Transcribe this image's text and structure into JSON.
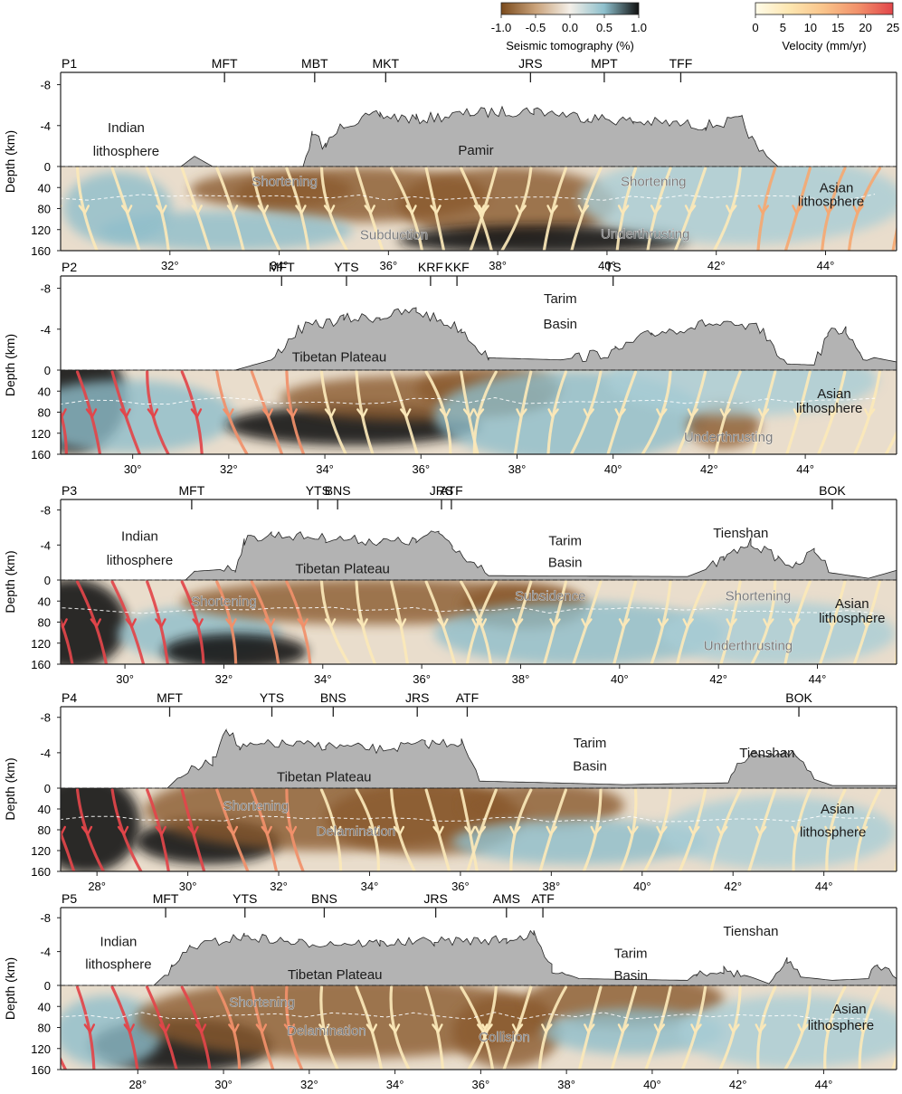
{
  "colorbars": {
    "tomography": {
      "label": "Seismic tomography (%)",
      "ticks": [
        "-1.0",
        "-0.5",
        "0.0",
        "0.5",
        "1.0"
      ],
      "colors": [
        "#7a4a1c",
        "#c9a27a",
        "#f4efe8",
        "#8dbfcc",
        "#101010"
      ]
    },
    "velocity": {
      "label": "Velocity (mm/yr)",
      "ticks": [
        "0",
        "5",
        "10",
        "15",
        "20",
        "25"
      ],
      "colors": [
        "#fffbe8",
        "#fde6b0",
        "#f9c38a",
        "#f1906a",
        "#e2454a"
      ]
    }
  },
  "axes": {
    "ylabel": "Depth (km)",
    "elev_ticks": [
      "-8",
      "-4",
      "0"
    ],
    "depth_ticks": [
      "40",
      "80",
      "120",
      "160"
    ]
  },
  "colors": {
    "topography": "#b3b3b3",
    "crust_brown": "#8a5a2e",
    "mantle_blue": "#8fbecb",
    "dark_slab": "#141414",
    "flow_light": "#fbe8b8",
    "flow_red": "#e2454a"
  },
  "profiles": [
    {
      "id": "P1",
      "lon_range": [
        30.0,
        45.3
      ],
      "x_ticks": [
        32,
        34,
        36,
        38,
        40,
        42,
        44
      ],
      "faults": [
        {
          "name": "MFT",
          "lon": 33.0
        },
        {
          "name": "MBT",
          "lon": 34.65
        },
        {
          "name": "MKT",
          "lon": 35.95
        },
        {
          "name": "JRS",
          "lon": 38.6
        },
        {
          "name": "MPT",
          "lon": 39.95
        },
        {
          "name": "TFF",
          "lon": 41.35
        }
      ],
      "labels": [
        {
          "text": "Indian",
          "lon": 31.2,
          "level": -3.8,
          "style": "title"
        },
        {
          "text": "lithosphere",
          "lon": 31.2,
          "level": -1.5,
          "style": "title"
        },
        {
          "text": "Pamir",
          "lon": 37.6,
          "level": -1.6,
          "style": "title"
        },
        {
          "text": "Shortening",
          "lon": 34.1,
          "level": 28,
          "style": "gray"
        },
        {
          "text": "Shortening",
          "lon": 40.85,
          "level": 28,
          "style": "gray"
        },
        {
          "text": "Asian",
          "lon": 44.2,
          "level": 40,
          "style": "title"
        },
        {
          "text": "lithosphere",
          "lon": 44.1,
          "level": 66,
          "style": "title"
        },
        {
          "text": "Subduction",
          "lon": 36.1,
          "level": 130,
          "style": "gray"
        },
        {
          "text": "Underthrusting",
          "lon": 40.7,
          "level": 128,
          "style": "gray"
        }
      ]
    },
    {
      "id": "P2",
      "lon_range": [
        28.5,
        45.9
      ],
      "x_ticks": [
        30,
        32,
        34,
        36,
        38,
        40,
        42,
        44
      ],
      "faults": [
        {
          "name": "MFT",
          "lon": 33.1
        },
        {
          "name": "YTS",
          "lon": 34.45
        },
        {
          "name": "KRF",
          "lon": 36.2
        },
        {
          "name": "KKF",
          "lon": 36.75
        },
        {
          "name": "TS",
          "lon": 40.0
        }
      ],
      "labels": [
        {
          "text": "Tibetan Plateau",
          "lon": 34.3,
          "level": -1.3,
          "style": "title"
        },
        {
          "text": "Tarim",
          "lon": 38.9,
          "level": -7.0,
          "style": "title"
        },
        {
          "text": "Basin",
          "lon": 38.9,
          "level": -4.5,
          "style": "title"
        },
        {
          "text": "Asian",
          "lon": 44.6,
          "level": 45,
          "style": "title"
        },
        {
          "text": "lithosphere",
          "lon": 44.5,
          "level": 72,
          "style": "title"
        },
        {
          "text": "Underthrusting",
          "lon": 42.4,
          "level": 127,
          "style": "gray"
        }
      ]
    },
    {
      "id": "P3",
      "lon_range": [
        28.7,
        45.6
      ],
      "x_ticks": [
        30,
        32,
        34,
        36,
        38,
        40,
        42,
        44
      ],
      "faults": [
        {
          "name": "MFT",
          "lon": 31.35
        },
        {
          "name": "YTS",
          "lon": 33.9
        },
        {
          "name": "BNS",
          "lon": 34.3
        },
        {
          "name": "JRS",
          "lon": 36.4
        },
        {
          "name": "ATF",
          "lon": 36.6
        },
        {
          "name": "BOK",
          "lon": 44.3
        }
      ],
      "labels": [
        {
          "text": "Indian",
          "lon": 30.3,
          "level": -5.0,
          "style": "title"
        },
        {
          "text": "lithosphere",
          "lon": 30.3,
          "level": -2.3,
          "style": "title"
        },
        {
          "text": "Tibetan Plateau",
          "lon": 34.4,
          "level": -1.3,
          "style": "title"
        },
        {
          "text": "Tarim",
          "lon": 38.9,
          "level": -4.5,
          "style": "title"
        },
        {
          "text": "Basin",
          "lon": 38.9,
          "level": -2.0,
          "style": "title"
        },
        {
          "text": "Tienshan",
          "lon": 42.45,
          "level": -5.4,
          "style": "title"
        },
        {
          "text": "Shortening",
          "lon": 32.0,
          "level": 40,
          "style": "gray"
        },
        {
          "text": "Subsidence",
          "lon": 38.6,
          "level": 30,
          "style": "gray"
        },
        {
          "text": "Shortening",
          "lon": 42.8,
          "level": 30,
          "style": "gray"
        },
        {
          "text": "Asian",
          "lon": 44.7,
          "level": 45,
          "style": "title"
        },
        {
          "text": "lithosphere",
          "lon": 44.7,
          "level": 72,
          "style": "title"
        },
        {
          "text": "Underthrusting",
          "lon": 42.6,
          "level": 125,
          "style": "gray"
        }
      ]
    },
    {
      "id": "P4",
      "lon_range": [
        27.2,
        45.6
      ],
      "x_ticks": [
        28,
        30,
        32,
        34,
        36,
        38,
        40,
        42,
        44
      ],
      "faults": [
        {
          "name": "MFT",
          "lon": 29.6
        },
        {
          "name": "YTS",
          "lon": 31.85
        },
        {
          "name": "BNS",
          "lon": 33.2
        },
        {
          "name": "JRS",
          "lon": 35.05
        },
        {
          "name": "ATF",
          "lon": 36.15
        },
        {
          "name": "BOK",
          "lon": 43.45
        }
      ],
      "labels": [
        {
          "text": "Tibetan Plateau",
          "lon": 33.0,
          "level": -1.3,
          "style": "title"
        },
        {
          "text": "Tarim",
          "lon": 38.85,
          "level": -5.1,
          "style": "title"
        },
        {
          "text": "Basin",
          "lon": 38.85,
          "level": -2.5,
          "style": "title"
        },
        {
          "text": "Tienshan",
          "lon": 42.75,
          "level": -4.0,
          "style": "title"
        },
        {
          "text": "Shortening",
          "lon": 31.5,
          "level": 34,
          "style": "gray"
        },
        {
          "text": "Delamination",
          "lon": 33.7,
          "level": 83,
          "style": "gray"
        },
        {
          "text": "Asian",
          "lon": 44.3,
          "level": 40,
          "style": "title"
        },
        {
          "text": "lithosphere",
          "lon": 44.2,
          "level": 84,
          "style": "title"
        }
      ]
    },
    {
      "id": "P5",
      "lon_range": [
        26.2,
        45.7
      ],
      "x_ticks": [
        28,
        30,
        32,
        34,
        36,
        38,
        40,
        42,
        44
      ],
      "faults": [
        {
          "name": "MFT",
          "lon": 28.65
        },
        {
          "name": "YTS",
          "lon": 30.5
        },
        {
          "name": "BNS",
          "lon": 32.35
        },
        {
          "name": "JRS",
          "lon": 34.95
        },
        {
          "name": "AMS",
          "lon": 36.6
        },
        {
          "name": "ATF",
          "lon": 37.45
        }
      ],
      "labels": [
        {
          "text": "Indian",
          "lon": 27.55,
          "level": -5.2,
          "style": "title"
        },
        {
          "text": "lithosphere",
          "lon": 27.55,
          "level": -2.5,
          "style": "title"
        },
        {
          "text": "Tibetan Plateau",
          "lon": 32.6,
          "level": -1.3,
          "style": "title"
        },
        {
          "text": "Tarim",
          "lon": 39.5,
          "level": -3.8,
          "style": "title"
        },
        {
          "text": "Basin",
          "lon": 39.5,
          "level": -1.2,
          "style": "title"
        },
        {
          "text": "Tienshan",
          "lon": 42.3,
          "level": -6.4,
          "style": "title"
        },
        {
          "text": "Shortening",
          "lon": 30.9,
          "level": 32,
          "style": "gray"
        },
        {
          "text": "Delamination",
          "lon": 32.4,
          "level": 86,
          "style": "gray"
        },
        {
          "text": "Collision",
          "lon": 36.55,
          "level": 98,
          "style": "gray"
        },
        {
          "text": "Asian",
          "lon": 44.6,
          "level": 45,
          "style": "title"
        },
        {
          "text": "lithosphere",
          "lon": 44.4,
          "level": 76,
          "style": "title"
        }
      ]
    }
  ]
}
